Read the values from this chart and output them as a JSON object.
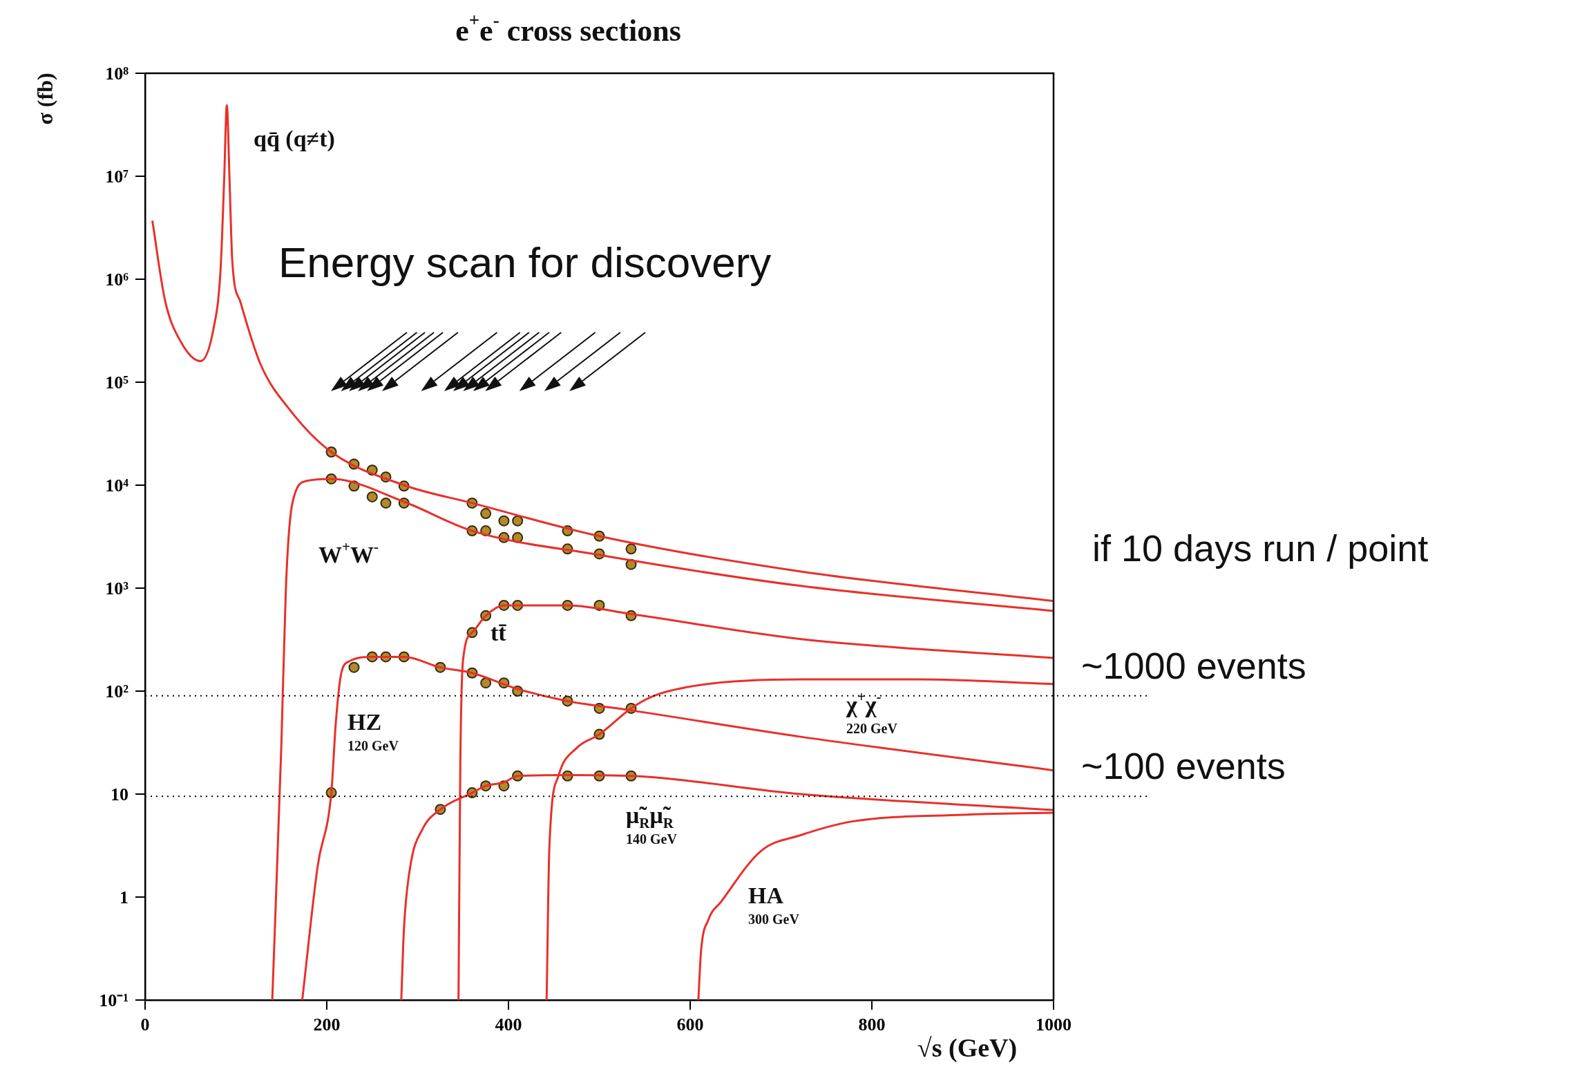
{
  "chart_data": {
    "type": "line",
    "title": "e$^{+}$e$^{-}$ cross sections",
    "xlabel": "√s (GeV)",
    "ylabel": "σ (fb)",
    "xlim": [
      0,
      1000
    ],
    "xticks": [
      0,
      200,
      400,
      600,
      800,
      1000
    ],
    "ylim": [
      0.1,
      100000000
    ],
    "yticks": [
      {
        "value": 0.1,
        "label": "10⁻¹"
      },
      1,
      10,
      {
        "value": 100,
        "label": "10²"
      },
      {
        "value": 1000,
        "label": "10³"
      },
      {
        "value": 10000,
        "label": "10⁴"
      },
      {
        "value": 100000,
        "label": "10⁵"
      },
      {
        "value": 1000000,
        "label": "10⁶"
      },
      {
        "value": 10000000,
        "label": "10⁷"
      },
      {
        "value": 100000000,
        "label": "10⁸"
      }
    ],
    "log": "y",
    "grid": false,
    "legend": false,
    "series": [
      {
        "type": "line",
        "color": "#e8302a",
        "marker": "none",
        "x": [
          8,
          22,
          39,
          61,
          75,
          83,
          87,
          90,
          93,
          96,
          105,
          127,
          160,
          205,
          285,
          360,
          500,
          722,
          1000
        ],
        "values": [
          3700000,
          620000,
          250000,
          160000,
          320000,
          1200000,
          9000000,
          49000000,
          9000000,
          1500000,
          600000,
          150000,
          53000,
          21000,
          10000,
          6700,
          3200,
          1450,
          750
        ]
      },
      {
        "type": "line",
        "color": "#e8302a",
        "marker": "none",
        "x": [
          140,
          150,
          155,
          162,
          178,
          205,
          285,
          360,
          500,
          722,
          1000
        ],
        "values": [
          0.1,
          30,
          1000,
          6600,
          11000,
          11500,
          6900,
          3600,
          2100,
          1050,
          600
        ]
      },
      {
        "type": "line",
        "color": "#e8302a",
        "marker": "none",
        "x": [
          345,
          347,
          350,
          360,
          375,
          395,
          465,
          535,
          722,
          1000
        ],
        "values": [
          0.1,
          20,
          200,
          370,
          540,
          680,
          680,
          560,
          320,
          210
        ]
      },
      {
        "type": "line",
        "color": "#e8302a",
        "marker": "none",
        "x": [
          173,
          190,
          205,
          210,
          216,
          225,
          250,
          285,
          325,
          360,
          410,
          465,
          535,
          722,
          1000
        ],
        "values": [
          0.1,
          2,
          10.3,
          50,
          150,
          195,
          215,
          215,
          170,
          150,
          105,
          80,
          65,
          36,
          17
        ]
      },
      {
        "type": "line",
        "color": "#e8302a",
        "marker": "none",
        "x": [
          442,
          445,
          455,
          475,
          500,
          535,
          560,
          612,
          722,
          850,
          1000
        ],
        "values": [
          0.1,
          3,
          15,
          28,
          38,
          68,
          90,
          115,
          130,
          130,
          117
        ]
      },
      {
        "type": "line",
        "color": "#e8302a",
        "marker": "none",
        "x": [
          282,
          285,
          292,
          305,
          325,
          360,
          375,
          395,
          410,
          465,
          535,
          722,
          1000
        ],
        "values": [
          0.1,
          0.5,
          2,
          4.5,
          7.1,
          10.3,
          12,
          13,
          15,
          15.3,
          15,
          10,
          7
        ]
      },
      {
        "type": "line",
        "color": "#e8302a",
        "marker": "none",
        "x": [
          609,
          612,
          620,
          634,
          678,
          722,
          777,
          900,
          1000
        ],
        "values": [
          0.1,
          0.3,
          0.6,
          0.9,
          2.8,
          4,
          5.4,
          6.3,
          6.6
        ]
      },
      {
        "type": "scatter",
        "color": "#b38a2a",
        "marker": "circle",
        "x": [
          205,
          230,
          250,
          265,
          285,
          360,
          375,
          395,
          410,
          465,
          500,
          535,
          205,
          230,
          250,
          265,
          285,
          360,
          375,
          395,
          410,
          465,
          500,
          535,
          360,
          375,
          395,
          410,
          465,
          500,
          535,
          230,
          250,
          265,
          285,
          325,
          360,
          375,
          395,
          410,
          465,
          500,
          535,
          500,
          325,
          360,
          375,
          395,
          410,
          465,
          500,
          535,
          205
        ],
        "values": [
          21000,
          16000,
          14000,
          12000,
          9800,
          6700,
          5300,
          4500,
          4500,
          3600,
          3200,
          2400,
          11500,
          9800,
          7700,
          6700,
          6700,
          3600,
          3600,
          3100,
          3100,
          2400,
          2150,
          1700,
          370,
          540,
          680,
          680,
          680,
          680,
          540,
          170,
          215,
          215,
          215,
          170,
          150,
          120,
          120,
          100,
          80,
          68,
          68,
          38,
          7.1,
          10.3,
          12,
          12,
          15,
          15,
          15,
          15,
          10.3
        ]
      }
    ],
    "ref_lines": [
      {
        "axis": "y",
        "value": 90,
        "label": "~1000 events",
        "line_style": "dotted",
        "color": "#000000"
      },
      {
        "axis": "y",
        "value": 9.5,
        "label": "~100 events",
        "line_style": "dotted",
        "color": "#000000"
      }
    ],
    "annotations": [
      "Energy scan for discovery",
      "if 10 days run / point",
      "qq̄ (q≠t)",
      "W$^{+}$W$^{-}$",
      "tt̄",
      "HZ\n120 GeV",
      "χ$^{+}$χ$^{-}$\n220 GeV",
      "μ̃$_{R}$μ̃$_{R}$\n140 GeV",
      "HA\n300 GeV"
    ]
  }
}
